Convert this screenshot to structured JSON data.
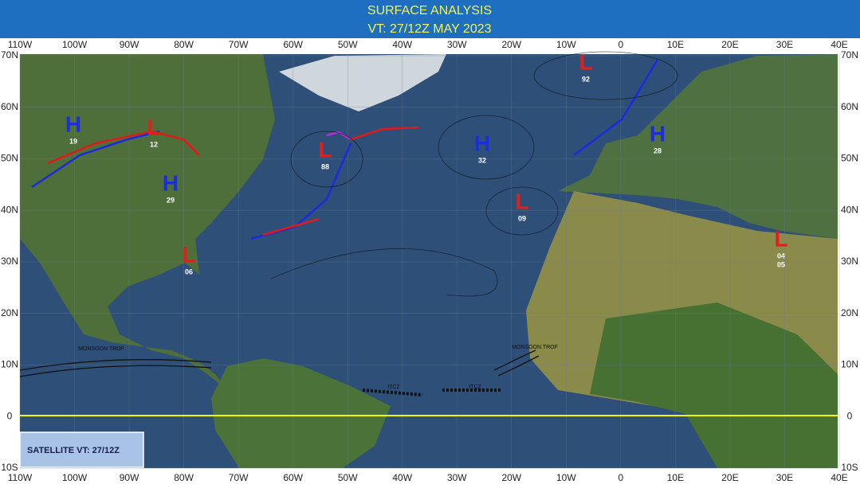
{
  "header": {
    "title": "SURFACE ANALYSIS",
    "valid_time": "VT: 27/12Z MAY 2023"
  },
  "map": {
    "longitude_labels": [
      "110W",
      "100W",
      "90W",
      "80W",
      "70W",
      "60W",
      "50W",
      "40W",
      "30W",
      "20W",
      "10W",
      "0",
      "10E",
      "20E",
      "30E",
      "40E"
    ],
    "latitude_labels": [
      "70N",
      "60N",
      "50N",
      "40N",
      "30N",
      "20N",
      "10N",
      "0",
      "10S"
    ],
    "systems": [
      {
        "type": "H",
        "pressures": [
          "19"
        ]
      },
      {
        "type": "L",
        "pressures": [
          "12"
        ]
      },
      {
        "type": "H",
        "pressures": [
          "29"
        ]
      },
      {
        "type": "L",
        "pressures": [
          "06"
        ]
      },
      {
        "type": "L",
        "pressures": [
          "88"
        ]
      },
      {
        "type": "H",
        "pressures": [
          "32"
        ]
      },
      {
        "type": "L",
        "pressures": [
          "09"
        ]
      },
      {
        "type": "L",
        "pressures": [
          "92"
        ]
      },
      {
        "type": "H",
        "pressures": [
          "28"
        ]
      },
      {
        "type": "L",
        "pressures": [
          "04",
          "05"
        ]
      }
    ],
    "annotations": [
      "MONSOON TROF",
      "MONSOON TROF",
      "ITCZ",
      "ITCZ"
    ],
    "satellite_label": "SATELLITE VT: 27/12Z"
  }
}
